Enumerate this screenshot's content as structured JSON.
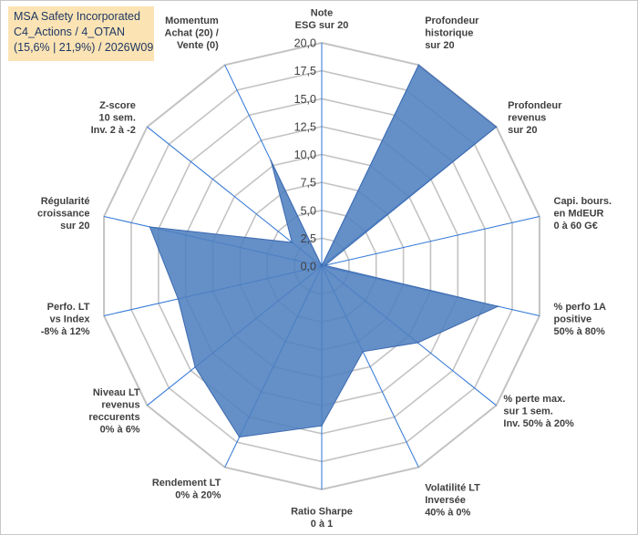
{
  "title_box": {
    "line1": "MSA Safety Incorporated",
    "line2": "C4_Actions / 4_OTAN",
    "line3": "(15,6% | 21,9%) / 2026W09"
  },
  "colors": {
    "fill": "#4f7fbf",
    "stroke": "#3d6ab0",
    "grid": "#c3c3c3",
    "spoke": "#2e75d6",
    "title_bg": "#fbe3b4",
    "title_text": "#1f3864",
    "label_text": "#404040"
  },
  "chart_data": {
    "type": "radar",
    "title": "",
    "range": [
      0,
      20
    ],
    "ticks": [
      "0,0",
      "2,5",
      "5,0",
      "7,5",
      "10,0",
      "12,5",
      "15,0",
      "17,5",
      "20,0"
    ],
    "axes": [
      {
        "label": [
          "Note",
          "ESG sur 20"
        ],
        "value": 0
      },
      {
        "label": [
          "Profondeur",
          "historique",
          "sur 20"
        ],
        "value": 20
      },
      {
        "label": [
          "Profondeur",
          "revenus",
          "sur 20"
        ],
        "value": 20
      },
      {
        "label": [
          "Capi. bours.",
          "en MdEUR",
          "0 à 60 G€"
        ],
        "value": 0.3
      },
      {
        "label": [
          "% perfo 1A",
          "positive",
          "50% à 80%"
        ],
        "value": 16.2
      },
      {
        "label": [
          "% perte max.",
          "sur 1 sem.",
          "Inv. 50% à 20%"
        ],
        "value": 11
      },
      {
        "label": [
          "Volatilité LT",
          "Inversée",
          "40% à 0%"
        ],
        "value": 8.5
      },
      {
        "label": [
          "Ratio Sharpe",
          "0 à 1"
        ],
        "value": 14.3
      },
      {
        "label": [
          "Rendement LT",
          "0% à 20%"
        ],
        "value": 17
      },
      {
        "label": [
          "Niveau LT",
          "revenus",
          "reccurents",
          "0% à 6%"
        ],
        "value": 14.5
      },
      {
        "label": [
          "Perfo. LT",
          "vs Index",
          "-8% à 12%"
        ],
        "value": 13.2
      },
      {
        "label": [
          "Régularité",
          "croissance",
          "sur 20"
        ],
        "value": 15.8
      },
      {
        "label": [
          "Z-score",
          "10 sem.",
          "Inv. 2 à -2"
        ],
        "value": 3.4
      },
      {
        "label": [
          "Momentum",
          "Achat (20) /",
          "Vente (0)"
        ],
        "value": 10.5
      }
    ]
  }
}
